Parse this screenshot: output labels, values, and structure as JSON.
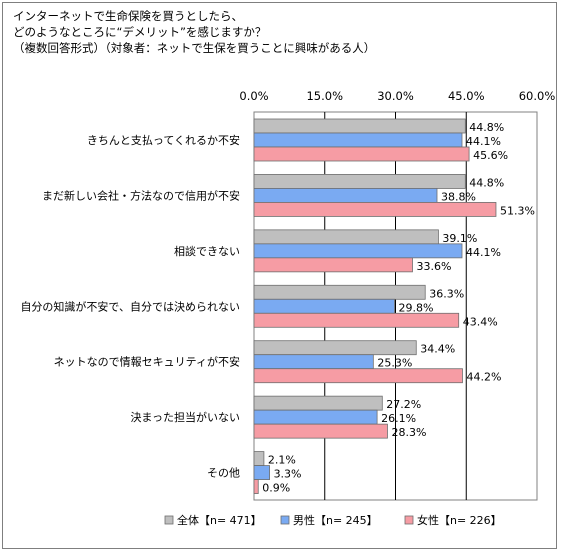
{
  "header": {
    "line1": "インターネットで生命保険を買うとしたら、",
    "line2": "どのようなところに“デメリット”を感じますか？",
    "line3": "（複数回答形式）（対象者：ネットで生保を買うことに興味がある人）"
  },
  "chart_data": {
    "type": "bar",
    "orientation": "horizontal",
    "title": "インターネットで生命保険を買うとしたら、どのようなところに“デメリット”を感じますか？",
    "subtitle": "（複数回答形式）（対象者：ネットで生保を買うことに興味がある人）",
    "xlim": [
      0,
      60
    ],
    "xticks": [
      "0.0%",
      "15.0%",
      "30.0%",
      "45.0%",
      "60.0%"
    ],
    "xtick_values": [
      0,
      15,
      30,
      45,
      60
    ],
    "grid": true,
    "legend_position": "bottom",
    "categories": [
      "きちんと支払ってくれるか不安",
      "まだ新しい会社・方法なので信用が不安",
      "相談できない",
      "自分の知識が不安で、自分では決められない",
      "ネットなので情報セキュリティが不安",
      "決まった担当がいない",
      "その他"
    ],
    "series": [
      {
        "name": "全体【n= 471】",
        "color": "#bfbfbf",
        "values": [
          44.8,
          44.8,
          39.1,
          36.3,
          34.4,
          27.2,
          2.1
        ],
        "labels": [
          "44.8%",
          "44.8%",
          "39.1%",
          "36.3%",
          "34.4%",
          "27.2%",
          "2.1%"
        ]
      },
      {
        "name": "男性【n= 245】",
        "color": "#7aaaf2",
        "values": [
          44.1,
          38.8,
          44.1,
          29.8,
          25.3,
          26.1,
          3.3
        ],
        "labels": [
          "44.1%",
          "38.8%",
          "44.1%",
          "29.8%",
          "25.3%",
          "26.1%",
          "3.3%"
        ]
      },
      {
        "name": "女性【n= 226】",
        "color": "#f69ca4",
        "values": [
          45.6,
          51.3,
          33.6,
          43.4,
          44.2,
          28.3,
          0.9
        ],
        "labels": [
          "45.6%",
          "51.3%",
          "33.6%",
          "43.4%",
          "44.2%",
          "28.3%",
          "0.9%"
        ]
      }
    ]
  }
}
